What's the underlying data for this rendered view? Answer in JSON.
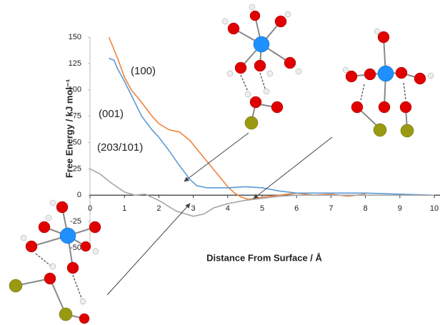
{
  "chart_data": {
    "type": "line",
    "y_label": "Free Energy / kJ mol⁻¹",
    "x_label": "Distance From Surface / Å",
    "xlim": [
      0,
      10
    ],
    "xticks": [
      0,
      1,
      2,
      3,
      4,
      5,
      6,
      7,
      8,
      9,
      10
    ],
    "ylim": [
      -50,
      150
    ],
    "yticks": [
      -50,
      -25,
      0,
      25,
      50,
      75,
      100,
      125,
      150
    ],
    "grid": false,
    "series": [
      {
        "name": "(100)",
        "color": "#f0823a",
        "x": [
          0.55,
          0.8,
          1.0,
          1.2,
          1.5,
          1.8,
          2.0,
          2.3,
          2.6,
          2.9,
          3.2,
          3.5,
          3.8,
          4.0,
          4.2,
          4.4,
          4.6,
          5.0,
          5.5,
          6.0,
          6.5,
          7.0,
          7.5,
          8.0
        ],
        "values": [
          150,
          130,
          112,
          100,
          88,
          75,
          68,
          62,
          60,
          52,
          40,
          28,
          16,
          8,
          2,
          -2,
          -4,
          -2,
          0,
          2,
          0,
          1,
          -1,
          1
        ]
      },
      {
        "name": "(001)",
        "color": "#5b9bd5",
        "x": [
          0.55,
          0.7,
          0.8,
          1.0,
          1.2,
          1.5,
          1.8,
          2.0,
          2.3,
          2.6,
          2.9,
          3.1,
          3.4,
          4.0,
          4.5,
          5.0,
          5.5,
          6.0,
          7.0,
          8.0,
          9.0,
          10.0
        ],
        "values": [
          130,
          128,
          120,
          108,
          95,
          75,
          62,
          55,
          42,
          28,
          15,
          9,
          7,
          7,
          8,
          7,
          4,
          2,
          2,
          2,
          1,
          0
        ]
      },
      {
        "name": "(203/101)",
        "color": "#a5a5a5",
        "x": [
          0,
          0.3,
          0.6,
          1.0,
          1.3,
          1.6,
          2.0,
          2.5,
          3.0,
          3.3,
          3.6,
          4.0,
          4.5,
          5.0,
          5.5,
          6.0,
          7.0,
          8.0,
          9.0,
          10.0
        ],
        "values": [
          25,
          20,
          12,
          3,
          0,
          1,
          -5,
          -15,
          -20,
          -18,
          -12,
          -8,
          -5,
          -3,
          -1,
          0,
          0,
          0,
          0,
          0
        ]
      }
    ]
  }
}
